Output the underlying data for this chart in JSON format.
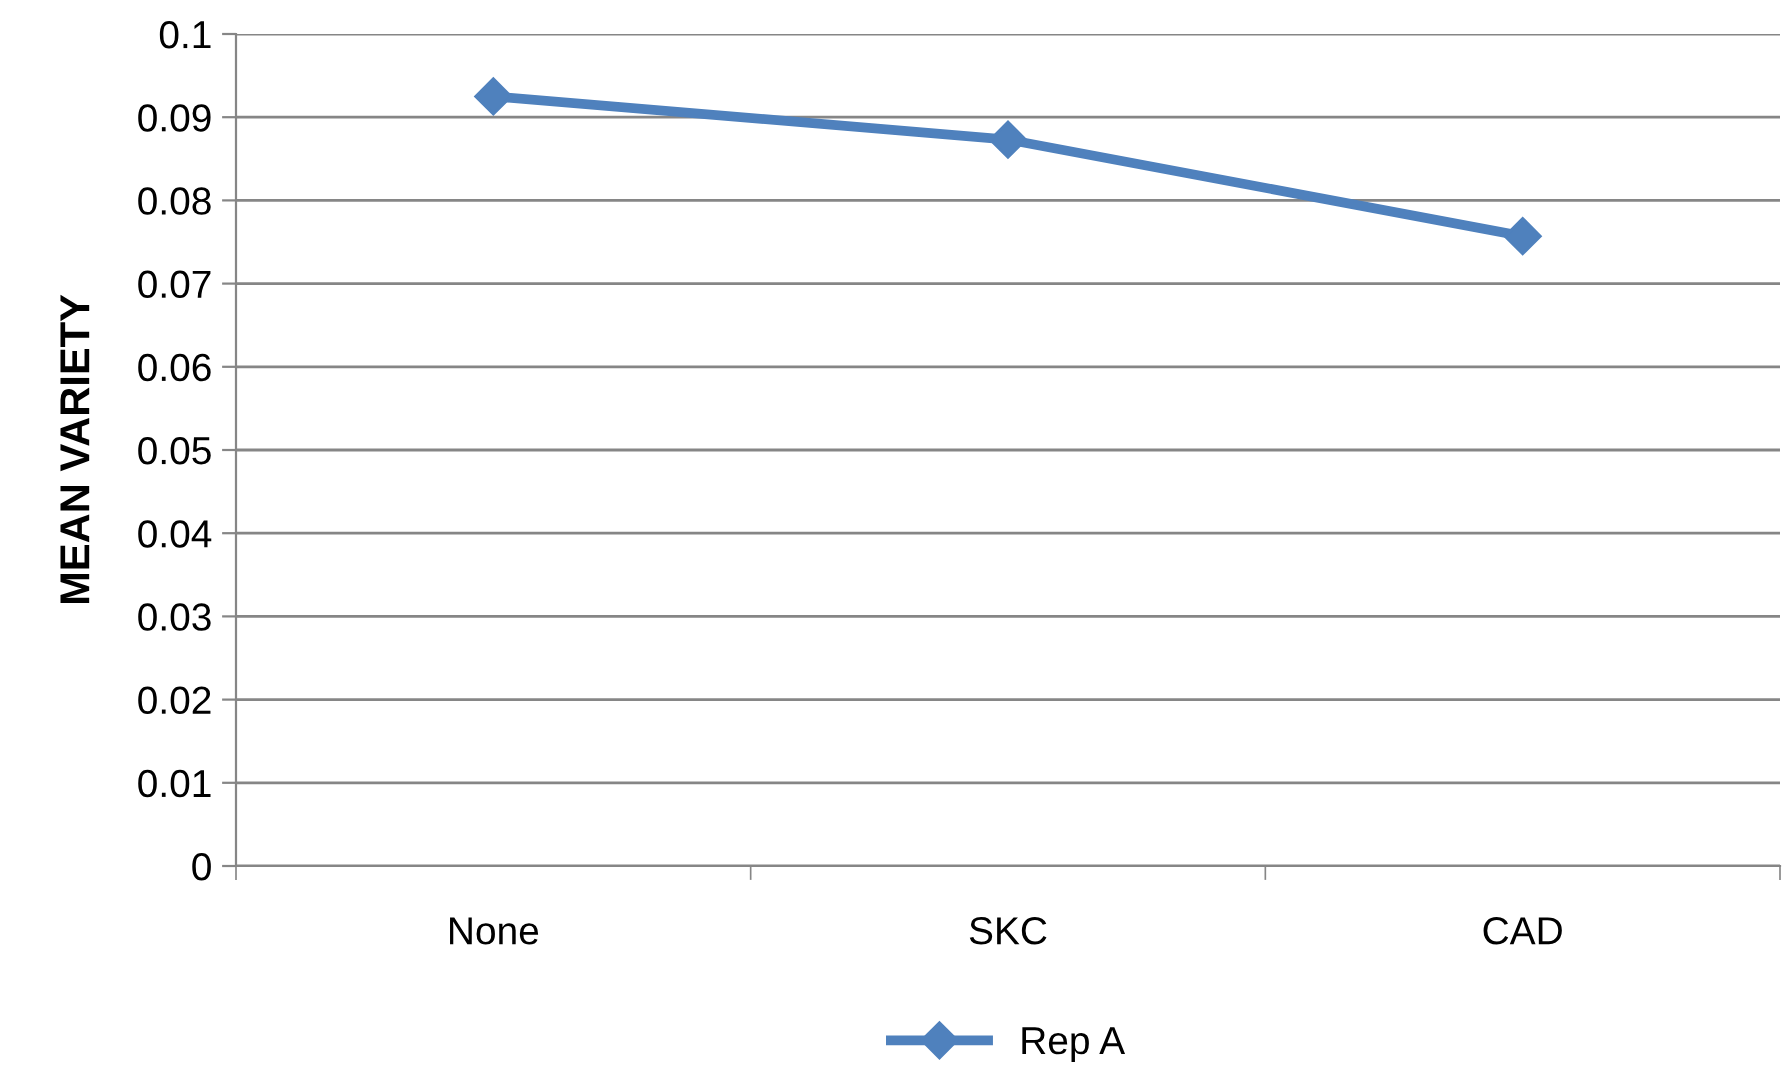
{
  "chart_data": {
    "type": "line",
    "ylabel": "MEAN VARIETY",
    "categories": [
      "None",
      "SKC",
      "CAD"
    ],
    "series": [
      {
        "name": "Rep A",
        "color": "#4f81bd",
        "values": [
          0.0925,
          0.0873,
          0.0757
        ]
      }
    ],
    "ylim": [
      0,
      0.1
    ],
    "yticks": [
      0,
      0.01,
      0.02,
      0.03,
      0.04,
      0.05,
      0.06,
      0.07,
      0.08,
      0.09,
      0.1
    ],
    "grid": "y",
    "legend": "bottom",
    "marker": "diamond",
    "line_style": "solid"
  }
}
